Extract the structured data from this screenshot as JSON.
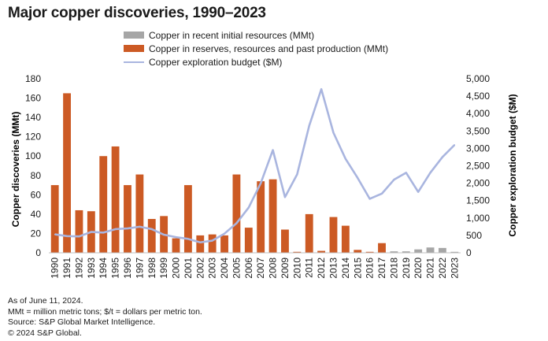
{
  "chart_data": {
    "type": "bar",
    "title": "Major copper discoveries, 1990–2023",
    "categories": [
      "1990",
      "1991",
      "1992",
      "1993",
      "1994",
      "1995",
      "1996",
      "1997",
      "1998",
      "1999",
      "2000",
      "2001",
      "2002",
      "2003",
      "2004",
      "2005",
      "2006",
      "2007",
      "2008",
      "2009",
      "2010",
      "2011",
      "2012",
      "2013",
      "2014",
      "2015",
      "2016",
      "2017",
      "2018",
      "2019",
      "2020",
      "2021",
      "2022",
      "2023"
    ],
    "series": [
      {
        "name": "Copper in recent initial resources (MMt)",
        "kind": "bar",
        "axis": "left",
        "color": "#a6a6a6",
        "values": [
          0,
          0,
          0,
          0,
          0,
          0,
          0,
          0,
          0,
          0,
          0,
          0,
          0,
          0,
          0,
          0,
          0,
          0,
          0,
          0,
          0,
          0,
          0,
          0,
          0,
          0,
          0,
          0,
          1.5,
          1.5,
          3.5,
          5.5,
          5,
          1
        ]
      },
      {
        "name": "Copper in reserves, resources and past production (MMt)",
        "kind": "bar",
        "axis": "left",
        "color": "#cc5a24",
        "values": [
          70,
          165,
          44,
          43,
          100,
          110,
          70,
          81,
          35,
          38,
          15,
          70,
          18,
          19,
          18,
          81,
          26,
          74,
          76,
          24,
          1,
          40,
          2,
          37,
          28,
          3,
          1,
          10,
          0,
          0,
          0,
          0,
          0,
          0
        ]
      },
      {
        "name": "Copper exploration budget ($M)",
        "kind": "line",
        "axis": "right",
        "color": "#a9b5df",
        "values": [
          530,
          480,
          470,
          600,
          580,
          680,
          700,
          750,
          680,
          520,
          450,
          400,
          300,
          350,
          550,
          850,
          1300,
          2000,
          2950,
          1600,
          2250,
          3650,
          4700,
          3450,
          2700,
          2150,
          1550,
          1700,
          2100,
          2300,
          1750,
          2300,
          2750,
          3100
        ]
      }
    ],
    "ylabel": "Copper discoveries (MMt)",
    "y2label": "Copper exploration budget ($M)",
    "ylim": [
      0,
      180
    ],
    "y2lim": [
      0,
      5000
    ],
    "yticks": [
      "0",
      "20",
      "40",
      "60",
      "80",
      "100",
      "120",
      "140",
      "160",
      "180"
    ],
    "y2ticks": [
      "0",
      "500",
      "1,000",
      "1,500",
      "2,000",
      "2,500",
      "3,000",
      "3,500",
      "4,000",
      "4,500",
      "5,000"
    ],
    "grid": false,
    "legend": "top-center"
  },
  "notes": [
    "As of June 11, 2024.",
    "MMt = million metric tons; $/t = dollars per metric ton.",
    "Source: S&P Global Market Intelligence.",
    "© 2024 S&P Global."
  ]
}
